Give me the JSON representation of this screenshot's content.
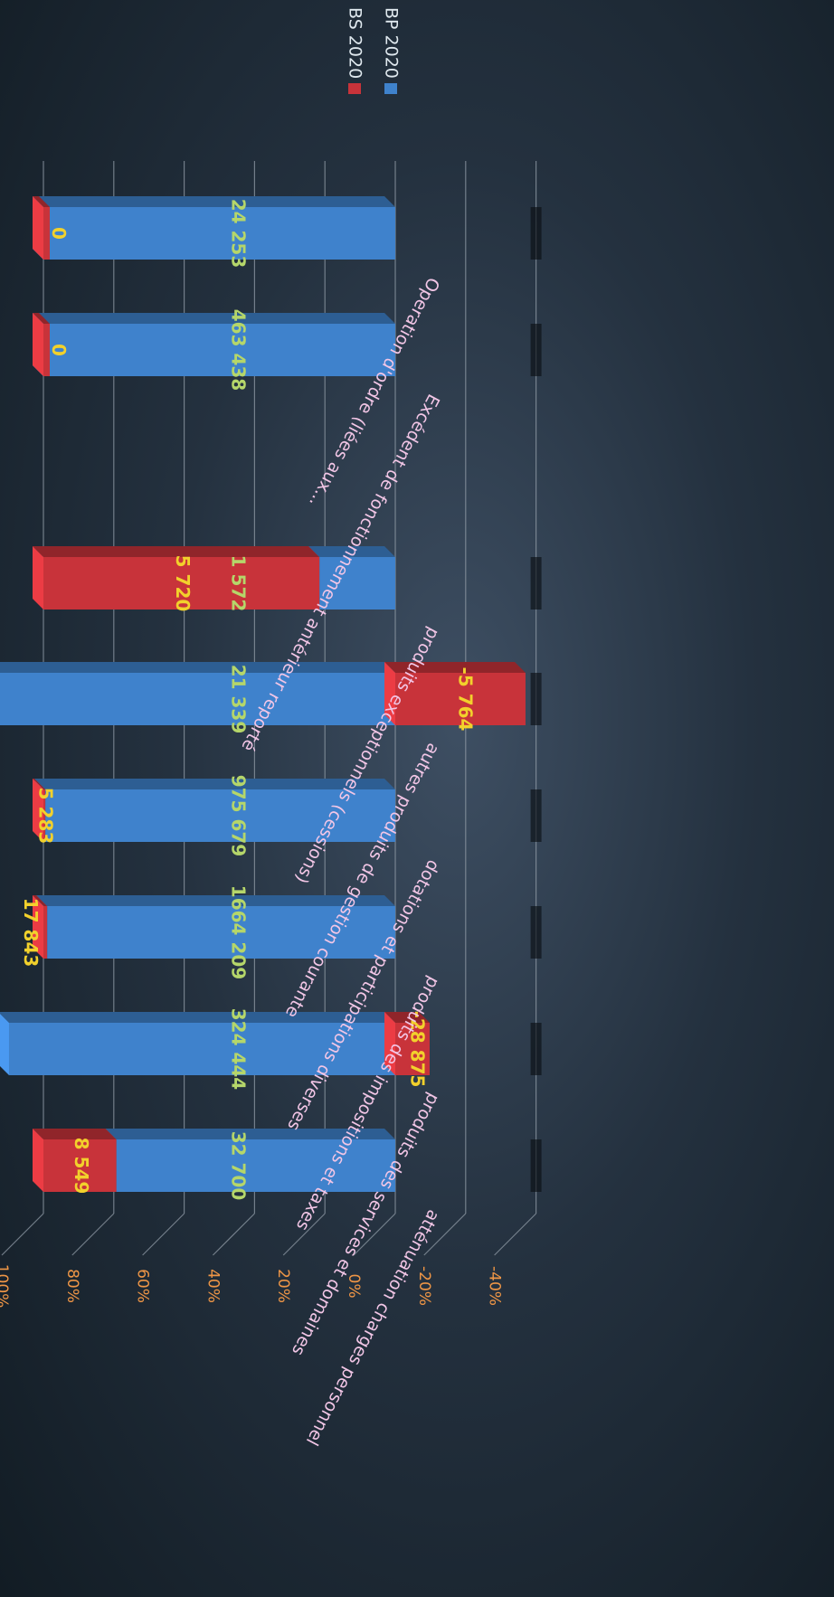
{
  "chart_data": {
    "type": "bar",
    "stacked": true,
    "percent_stacked": true,
    "orientation": "horizontal (image rotated 90°)",
    "categories": [
      "atténuation charges personnel",
      "produits des services et domaines",
      "produits des impositions et taxes",
      "dotations et participations diverses",
      "autres produits de gestion courante",
      "produits exceptionnels (cessions)",
      "Excédent de fonctionnement antérieur reporté",
      "Operation d'ordre (liées aux..."
    ],
    "series": [
      {
        "name": "BP 2020",
        "color": "#3f82cc",
        "values": [
          32700,
          324444,
          1664209,
          975679,
          21339,
          1572,
          463438,
          24253
        ],
        "labels": [
          "32 700",
          "324 444",
          "1664 209",
          "975 679",
          "21 339",
          "1 572",
          "463 438",
          "24 253"
        ]
      },
      {
        "name": "BS 2020",
        "color": "#c8333a",
        "values": [
          8549,
          -28875,
          17843,
          5283,
          -5764,
          5720,
          0,
          0
        ],
        "labels": [
          "8 549",
          "-28 875",
          "17 843",
          "5 283",
          "-5 764",
          "5 720",
          "0",
          "0"
        ]
      }
    ],
    "axis": {
      "min": -40,
      "max": 100,
      "step": 20,
      "ticks": [
        "-40%",
        "-20%",
        "0%",
        "20%",
        "40%",
        "60%",
        "80%",
        "100%"
      ]
    },
    "grid": true,
    "legend": {
      "position": "right",
      "entries": [
        "BS 2020",
        "BP 2020"
      ]
    },
    "colors": {
      "bp_label": "#b5d66a",
      "bs_label": "#f2d12c",
      "tick": "#ef9646",
      "category": "#f2c6e6",
      "legend_text": "#dfe8ee"
    }
  }
}
